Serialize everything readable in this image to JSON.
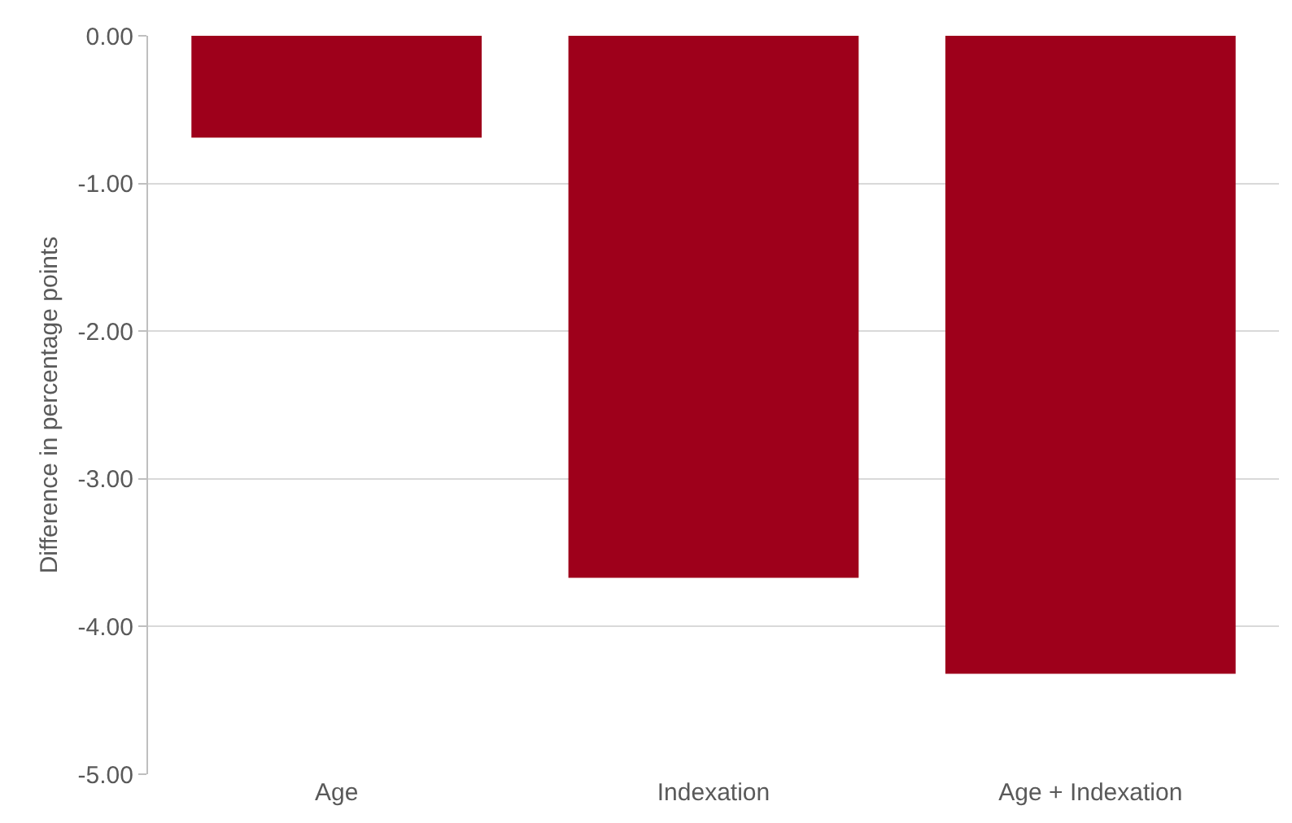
{
  "chart_data": {
    "type": "bar",
    "ylabel": "Difference in percentage points",
    "categories": [
      "Age",
      "Indexation",
      "Age + Indexation"
    ],
    "values": [
      -0.69,
      -3.67,
      -4.32
    ],
    "color": "#9e001b",
    "ylim": [
      -5,
      0
    ],
    "yticks": [
      {
        "value": 0,
        "label": "0.00"
      },
      {
        "value": -1,
        "label": "-1.00"
      },
      {
        "value": -2,
        "label": "-2.00"
      },
      {
        "value": -3,
        "label": "-3.00"
      },
      {
        "value": -4,
        "label": "-4.00"
      },
      {
        "value": -5,
        "label": "-5.00"
      }
    ],
    "grid": "y"
  }
}
